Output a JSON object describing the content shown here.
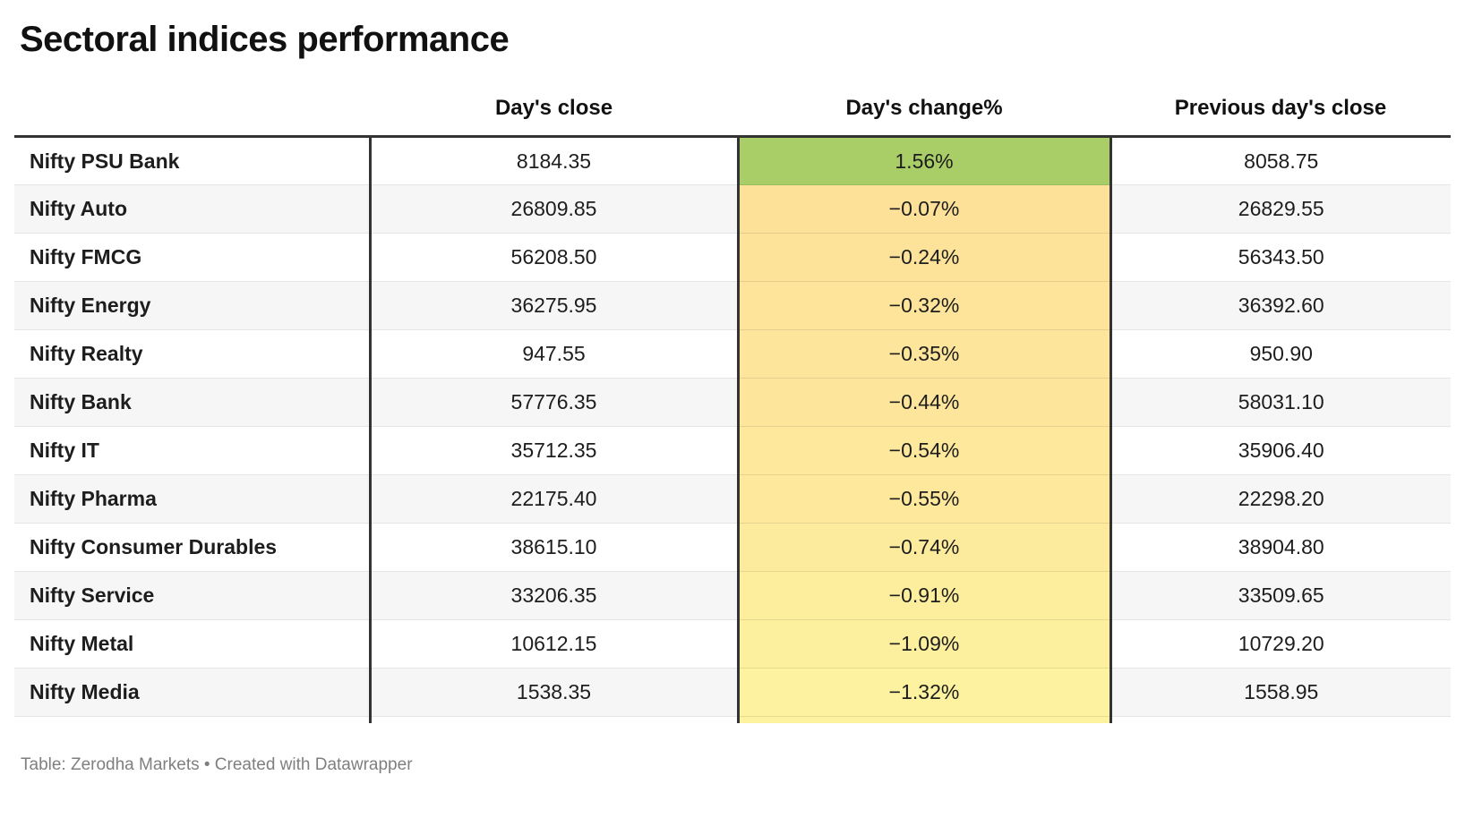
{
  "title": "Sectoral indices performance",
  "columns": {
    "name": "",
    "close": "Day's close",
    "change": "Day's change%",
    "prev": "Previous day's close"
  },
  "rows": [
    {
      "name": "Nifty PSU Bank",
      "close": "8184.35",
      "change": "1.56%",
      "prev": "8058.75",
      "change_bg": "#a9ce67"
    },
    {
      "name": "Nifty Auto",
      "close": "26809.85",
      "change": "−0.07%",
      "prev": "26829.55",
      "change_bg": "#fde199"
    },
    {
      "name": "Nifty FMCG",
      "close": "56208.50",
      "change": "−0.24%",
      "prev": "56343.50",
      "change_bg": "#fde29a"
    },
    {
      "name": "Nifty Energy",
      "close": "36275.95",
      "change": "−0.32%",
      "prev": "36392.60",
      "change_bg": "#fde49a"
    },
    {
      "name": "Nifty Realty",
      "close": "947.55",
      "change": "−0.35%",
      "prev": "950.90",
      "change_bg": "#fde59b"
    },
    {
      "name": "Nifty Bank",
      "close": "57776.35",
      "change": "−0.44%",
      "prev": "58031.10",
      "change_bg": "#fde69b"
    },
    {
      "name": "Nifty IT",
      "close": "35712.35",
      "change": "−0.54%",
      "prev": "35906.40",
      "change_bg": "#fde89c"
    },
    {
      "name": "Nifty Pharma",
      "close": "22175.40",
      "change": "−0.55%",
      "prev": "22298.20",
      "change_bg": "#fde89c"
    },
    {
      "name": "Nifty Consumer Durables",
      "close": "38615.10",
      "change": "−0.74%",
      "prev": "38904.80",
      "change_bg": "#fdeb9d"
    },
    {
      "name": "Nifty Service",
      "close": "33206.35",
      "change": "−0.91%",
      "prev": "33509.65",
      "change_bg": "#fdee9e"
    },
    {
      "name": "Nifty Metal",
      "close": "10612.15",
      "change": "−1.09%",
      "prev": "10729.20",
      "change_bg": "#fcf09f"
    },
    {
      "name": "Nifty Media",
      "close": "1538.35",
      "change": "−1.32%",
      "prev": "1558.95",
      "change_bg": "#fcf29f"
    }
  ],
  "footer": "Table: Zerodha Markets • Created with Datawrapper",
  "colors": {
    "positive_green": "#a9ce67",
    "negative_scale_dark": "#fde199",
    "negative_scale_light": "#fcf29f",
    "border_black": "#333333",
    "zebra_gray": "#f6f6f6"
  },
  "chart_data": {
    "type": "table",
    "title": "Sectoral indices performance",
    "columns": [
      "",
      "Day's close",
      "Day's change%",
      "Previous day's close"
    ],
    "rows": [
      [
        "Nifty PSU Bank",
        8184.35,
        1.56,
        8058.75
      ],
      [
        "Nifty Auto",
        26809.85,
        -0.07,
        26829.55
      ],
      [
        "Nifty FMCG",
        56208.5,
        -0.24,
        56343.5
      ],
      [
        "Nifty Energy",
        36275.95,
        -0.32,
        36392.6
      ],
      [
        "Nifty Realty",
        947.55,
        -0.35,
        950.9
      ],
      [
        "Nifty Bank",
        57776.35,
        -0.44,
        58031.1
      ],
      [
        "Nifty IT",
        35712.35,
        -0.54,
        35906.4
      ],
      [
        "Nifty Pharma",
        22175.4,
        -0.55,
        22298.2
      ],
      [
        "Nifty Consumer Durables",
        38615.1,
        -0.74,
        38904.8
      ],
      [
        "Nifty Service",
        33206.35,
        -0.91,
        33509.65
      ],
      [
        "Nifty Metal",
        10612.15,
        -1.09,
        10729.2
      ],
      [
        "Nifty Media",
        1538.35,
        -1.32,
        1558.95
      ]
    ],
    "heatmap_column": "Day's change%",
    "sorted_by": "Day's change% descending",
    "footer": "Table: Zerodha Markets • Created with Datawrapper"
  }
}
